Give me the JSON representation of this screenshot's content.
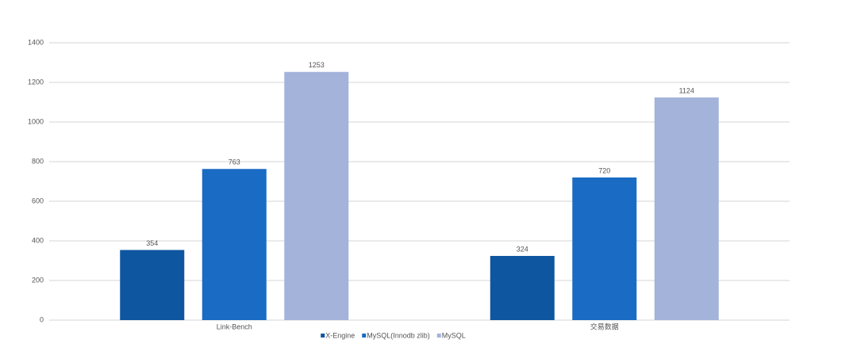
{
  "chart_data": {
    "type": "bar",
    "categories": [
      "Link-Bench",
      "交易数据"
    ],
    "series": [
      {
        "name": "X-Engine",
        "color": "#0e56a0",
        "values": [
          354,
          324
        ]
      },
      {
        "name": "MySQL(Innodb zlib)",
        "color": "#1a6bc3",
        "values": [
          763,
          720
        ]
      },
      {
        "name": "MySQL",
        "color": "#a3b3da",
        "values": [
          1253,
          1124
        ]
      }
    ],
    "ylim": [
      0,
      1400
    ],
    "yticks": [
      0,
      200,
      400,
      600,
      800,
      1000,
      1200,
      1400
    ],
    "grid": true,
    "legend": "bottom"
  }
}
